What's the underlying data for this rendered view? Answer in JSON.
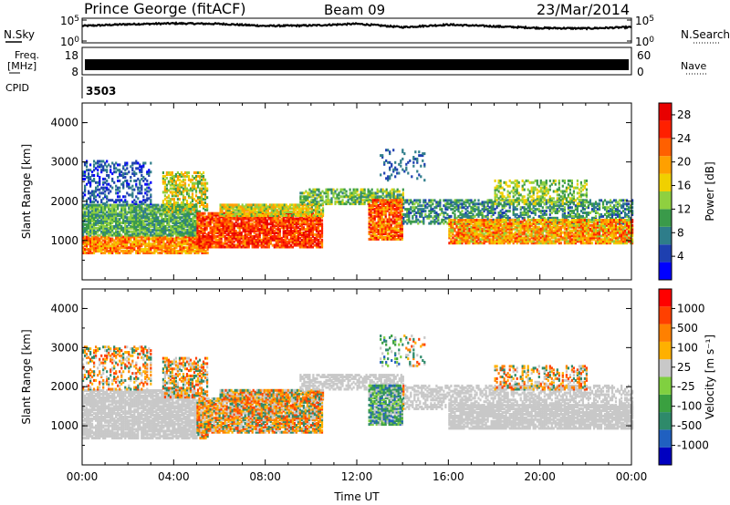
{
  "header": {
    "station": "Prince George (fitACF)",
    "beam": "Beam 09",
    "date": "23/Mar/2014"
  },
  "labels": {
    "nsky": "N.Sky",
    "nsearch": "N.Search",
    "freq_line1": "Freq.",
    "freq_line2": "[MHz]",
    "nave": "Nave",
    "cpid": "CPID",
    "cpid_value": "3503",
    "noise_ticks": [
      "10^5",
      "10^0"
    ],
    "freq_ticks": [
      "18",
      "8"
    ],
    "nave_ticks": [
      "60",
      "0"
    ]
  },
  "colors": {
    "power_scale": [
      "#0000ff",
      "#1e40b0",
      "#2e7d8a",
      "#3a9a4a",
      "#8fd040",
      "#f0d000",
      "#ffa000",
      "#ff6000",
      "#ff2000",
      "#e80000"
    ],
    "velocity_scale": [
      "#0000c0",
      "#2060c0",
      "#2e8a6a",
      "#3aa040",
      "#80d040",
      "#c8c8c8",
      "#ffb000",
      "#ff8000",
      "#ff4000",
      "#ff0000"
    ],
    "ground_scatter": "#c8c8c8"
  },
  "chart_data": [
    {
      "type": "line",
      "name": "N.Sky",
      "ylabel": "N.Sky",
      "y_scale": "log",
      "yticks": [
        "10^5",
        "10^0"
      ],
      "x": [
        "00:00",
        "02:00",
        "04:00",
        "06:00",
        "08:00",
        "10:00",
        "12:00",
        "14:00",
        "16:00",
        "18:00",
        "20:00",
        "22:00",
        "24:00"
      ],
      "values_log10": [
        3.6,
        4.0,
        4.2,
        4.1,
        3.6,
        3.7,
        4.1,
        3.3,
        3.9,
        3.5,
        3.1,
        3.0,
        3.3
      ]
    },
    {
      "type": "line",
      "name": "Freq.",
      "ylabel": "Freq. [MHz]",
      "yticks": [
        "18",
        "8"
      ],
      "y_right_ticks": [
        "60",
        "0"
      ],
      "y_right_label": "Nave",
      "description_value_freq_mhz": 11.0,
      "nave_value": 30
    },
    {
      "type": "heatmap",
      "title": "Power",
      "xlabel": "Time UT",
      "ylabel": "Slant Range [km]",
      "xticks": [
        "00:00",
        "04:00",
        "08:00",
        "12:00",
        "16:00",
        "20:00",
        "00:00"
      ],
      "yticks": [
        "1000",
        "2000",
        "3000",
        "4000"
      ],
      "ylim": [
        0,
        4500
      ],
      "colorbar": {
        "label": "Power [dB]",
        "ticks": [
          "4",
          "8",
          "12",
          "16",
          "20",
          "24",
          "28"
        ],
        "range": [
          0,
          30
        ]
      }
    },
    {
      "type": "heatmap",
      "title": "Velocity",
      "xlabel": "Time UT",
      "ylabel": "Slant Range [km]",
      "xticks": [
        "00:00",
        "04:00",
        "08:00",
        "12:00",
        "16:00",
        "20:00",
        "00:00"
      ],
      "yticks": [
        "1000",
        "2000",
        "3000",
        "4000"
      ],
      "ylim": [
        0,
        4500
      ],
      "colorbar": {
        "label": "Velocity [m s^-1]",
        "ticks": [
          "1000",
          "500",
          "100",
          "25",
          "-25",
          "-100",
          "-500",
          "-1000"
        ]
      }
    }
  ]
}
